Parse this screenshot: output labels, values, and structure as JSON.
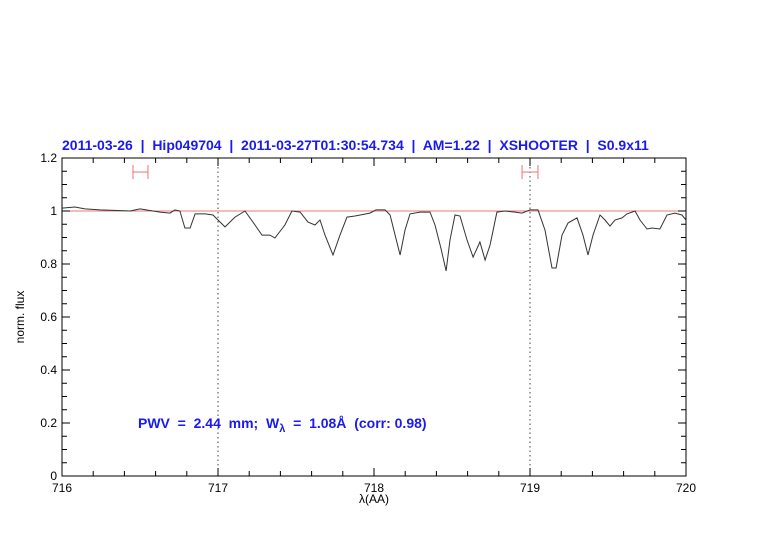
{
  "chart_data": {
    "type": "line",
    "title": "2011-03-26  |  Hip049704  |  2011-03-27T01:30:54.734  |  AM=1.22  |  XSHOOTER  |  S0.9x11",
    "xlabel": "λ(AA)",
    "ylabel": "norm. flux",
    "xlim": [
      716,
      720
    ],
    "ylim": [
      0,
      1.2
    ],
    "x_ticks": [
      "716",
      "717",
      "718",
      "719",
      "720"
    ],
    "y_ticks": [
      "0",
      "0.2",
      "0.4",
      "0.6",
      "0.8",
      "1",
      "1.2"
    ],
    "reference_line": 1.0,
    "vertical_dotted_lines": [
      717,
      719
    ],
    "ranges": [
      [
        716.455,
        716.551
      ],
      [
        718.949,
        719.051
      ]
    ],
    "ranges_y": 1.147,
    "annotation": {
      "prefix": "PWV  =  2.44  mm;  W",
      "subscript": "λ",
      "suffix": "  =  1.08Å  (corr: 0.98)"
    },
    "colors": {
      "title": "#1a1aee",
      "annotation": "#1a1aee",
      "spectrum": "#333333",
      "reference_line": "#e87878",
      "ranges": "#f07070"
    },
    "series": [
      {
        "x": [
          716.0,
          716.083,
          716.147,
          716.244,
          716.436,
          716.5,
          716.628,
          716.692,
          716.724,
          716.756,
          716.788,
          716.821,
          716.853,
          716.917,
          716.968,
          717.0,
          717.045,
          717.109,
          717.173,
          717.237,
          717.282,
          717.333,
          717.365,
          717.429,
          717.474,
          717.526,
          717.577,
          717.622,
          717.654,
          717.686,
          717.737,
          717.782,
          717.827,
          717.878,
          717.974,
          718.013,
          718.071,
          718.103,
          718.135,
          718.167,
          718.199,
          718.231,
          718.295,
          718.359,
          718.391,
          718.429,
          718.462,
          718.487,
          718.519,
          718.551,
          718.596,
          718.635,
          718.679,
          718.712,
          718.744,
          718.788,
          718.84,
          718.904,
          718.949,
          719.0,
          719.051,
          719.096,
          719.141,
          719.167,
          719.205,
          719.244,
          719.301,
          719.34,
          719.372,
          719.404,
          719.449,
          719.481,
          719.513,
          719.545,
          719.59,
          719.622,
          719.673,
          719.705,
          719.75,
          719.782,
          719.833,
          719.878,
          719.929,
          719.974,
          720.0
        ],
        "y": [
          1.011,
          1.015,
          1.008,
          1.004,
          1.0,
          1.008,
          0.996,
          0.992,
          1.004,
          1.0,
          0.936,
          0.936,
          0.989,
          0.989,
          0.985,
          0.966,
          0.94,
          0.977,
          1.0,
          0.947,
          0.909,
          0.909,
          0.898,
          0.947,
          1.0,
          0.996,
          0.958,
          0.947,
          0.966,
          0.909,
          0.834,
          0.909,
          0.977,
          0.981,
          0.992,
          1.004,
          1.004,
          0.985,
          0.909,
          0.834,
          0.928,
          0.989,
          0.996,
          0.996,
          0.947,
          0.86,
          0.774,
          0.891,
          0.985,
          0.981,
          0.891,
          0.826,
          0.883,
          0.815,
          0.872,
          0.996,
          1.0,
          0.996,
          0.992,
          1.004,
          1.004,
          0.928,
          0.785,
          0.785,
          0.909,
          0.955,
          0.974,
          0.909,
          0.834,
          0.909,
          0.985,
          0.966,
          0.943,
          0.966,
          0.974,
          0.989,
          1.0,
          0.966,
          0.932,
          0.936,
          0.932,
          0.985,
          0.992,
          0.985,
          0.966
        ]
      }
    ]
  }
}
